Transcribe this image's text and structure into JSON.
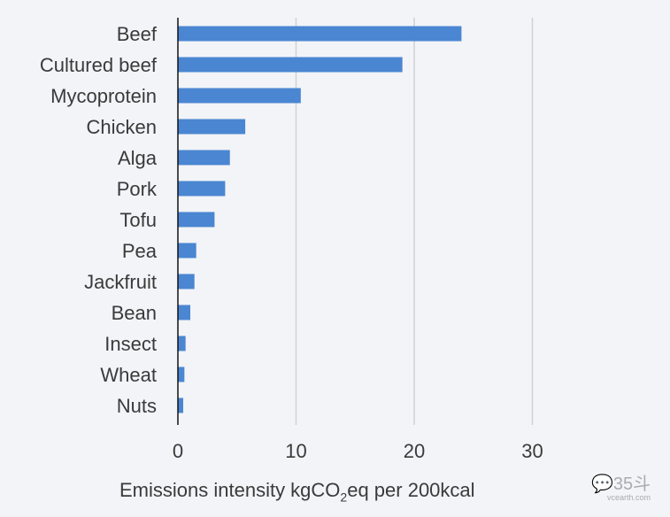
{
  "chart_data": {
    "type": "bar",
    "orientation": "horizontal",
    "categories": [
      "Beef",
      "Cultured beef",
      "Mycoprotein",
      "Chicken",
      "Alga",
      "Pork",
      "Tofu",
      "Pea",
      "Jackfruit",
      "Bean",
      "Insect",
      "Wheat",
      "Nuts"
    ],
    "values": [
      24.0,
      19.0,
      10.4,
      5.7,
      4.4,
      4.0,
      3.1,
      1.55,
      1.4,
      1.05,
      0.65,
      0.55,
      0.45
    ],
    "xlabel_parts": [
      "Emissions intensity kgCO",
      "2",
      "eq per 200kcal"
    ],
    "xticks": [
      0,
      10,
      20,
      30
    ],
    "xlim": [
      0,
      30
    ],
    "grid": true,
    "bar_color": "#4a86d2"
  },
  "watermark": {
    "text": "35斗",
    "site": "vcearth.com"
  }
}
